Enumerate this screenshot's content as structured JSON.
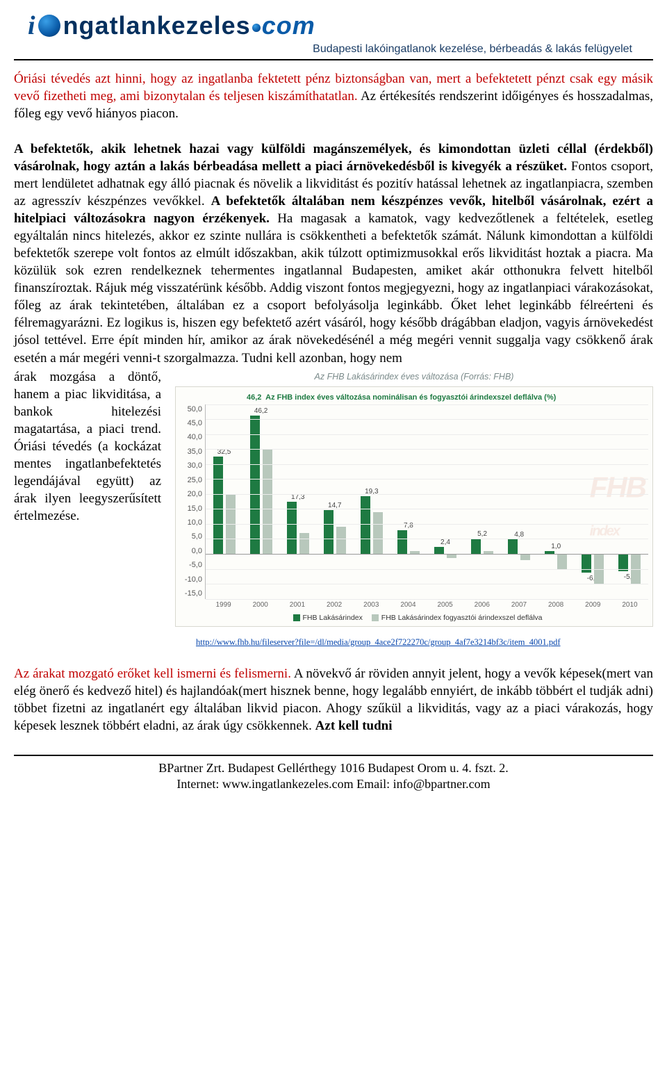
{
  "logo": {
    "i_char": "i",
    "main": "ngatlankezeles",
    "dot": ".",
    "com": "com",
    "subtitle": "Budapesti lakóingatlanok kezelése, bérbeadás & lakás felügyelet"
  },
  "para1_red": "Óriási tévedés azt hinni, hogy az ingatlanba fektetett pénz biztonságban van, mert a befektetett pénzt csak egy másik vevő fizetheti meg, ami bizonytalan és teljesen kiszámíthatatlan.",
  "para1_black": " Az értékesítés rendszerint időigényes és hosszadalmas, főleg egy vevő hiányos piacon.",
  "para2_a": "A befektetők, akik lehetnek hazai vagy külföldi magánszemélyek, és kimondottan üzleti céllal (érdekből) vásárolnak, hogy aztán a lakás bérbeadása mellett a piaci árnövekedésből is kivegyék a részüket.",
  "para2_b": " Fontos csoport, mert lendületet adhatnak egy álló piacnak és növelik a likviditást és pozitív hatással lehetnek az ingatlanpiacra, szemben az agresszív készpénzes vevőkkel. ",
  "para2_c": "A befektetők általában nem készpénzes vevők, hitelből vásárolnak, ezért a hitelpiaci változásokra nagyon érzékenyek.",
  "para2_d": " Ha magasak a kamatok, vagy kedvezőtlenek a feltételek, esetleg egyáltalán nincs hitelezés, akkor ez szinte nullára is csökkentheti a befektetők számát. Nálunk kimondottan a külföldi befektetők szerepe volt fontos az elmúlt időszakban, akik túlzott optimizmusokkal erős likviditást hoztak a piacra. Ma közülük sok ezren rendelkeznek tehermentes ingatlannal Budapesten, amiket akár otthonukra felvett hitelből finanszíroztak. Rájuk még visszatérünk később. Addig viszont fontos megjegyezni, hogy az ingatlanpiaci várakozásokat, főleg az árak tekintetében, általában ez a csoport befolyásolja leginkább. Őket lehet leginkább félreérteni és félremagyarázni. Ez logikus is, hiszen egy befektető azért vásáról, hogy később drágábban eladjon, vagyis árnövekedést jósol tettével. Erre épít minden hír, amikor az árak növekedésénél a még megéri vennit suggalja vagy csökkenő árak esetén a már megéri venni-t szorgalmazza. Tudni kell azonban, hogy nem",
  "para2_left": "árak mozgása a döntő, hanem a piac likviditása, a bankok hitelezési magatartása, a piaci trend. Óriási tévedés (a kockázat mentes ingatlanbefektetés legendájával együtt) az árak ilyen leegyszerűsített értelmezése.",
  "chart": {
    "title": "Az FHB Lakásárindex éves változása (Forrás: FHB)",
    "topline_value": "46,2",
    "topline_text": "Az FHB index éves változása nominálisan és fogyasztói árindexszel deflálva (%)",
    "ymin": -15,
    "ymax": 50,
    "ystep": 5,
    "years": [
      "1999",
      "2000",
      "2001",
      "2002",
      "2003",
      "2004",
      "2005",
      "2006",
      "2007",
      "2008",
      "2009",
      "2010"
    ],
    "series_a_name": "FHB Lakásárindex",
    "series_b_name": "FHB Lakásárindex fogyasztói árindexszel deflálva",
    "values_a": [
      32.5,
      46.2,
      17.3,
      14.7,
      19.3,
      7.8,
      2.4,
      5.2,
      4.8,
      1.0,
      -6.3,
      -5.7
    ],
    "values_b": [
      20,
      35,
      7,
      9,
      14,
      1,
      -1.5,
      1,
      -2,
      -5,
      -10.2,
      -10
    ],
    "labels_a": [
      "32,5",
      "46,2",
      "17,3",
      "14,7",
      "19,3",
      "7,8",
      "2,4",
      "5,2",
      "4,8",
      "1,0",
      "-6,3",
      "-5,7"
    ],
    "color_a": "#1e7a42",
    "color_b": "#b8c8bc",
    "source_url": "http://www.fhb.hu/fileserver?file=/dl/media/group_4ace2f722270c/group_4af7e3214bf3c/item_4001.pdf"
  },
  "para3_red": "Az árakat mozgató erőket kell ismerni és felismerni.",
  "para3_black": " A növekvő ár röviden annyit jelent, hogy a vevők képesek(mert van elég önerő és kedvező hitel) és hajlandóak(mert hisznek benne, hogy legalább ennyiért, de inkább többért el tudják adni) többet fizetni az ingatlanért egy általában likvid piacon. Ahogy szűkül a likviditás, vagy az a piaci várakozás, hogy képesek lesznek többért eladni, az árak úgy csökkennek. ",
  "para3_bold": "Azt kell tudni",
  "footer": {
    "line1": "BPartner Zrt. Budapest Gellérthegy 1016 Budapest Orom u. 4. fszt. 2.",
    "line2": "Internet: www.ingatlankezeles.com Email: info@bpartner.com"
  }
}
